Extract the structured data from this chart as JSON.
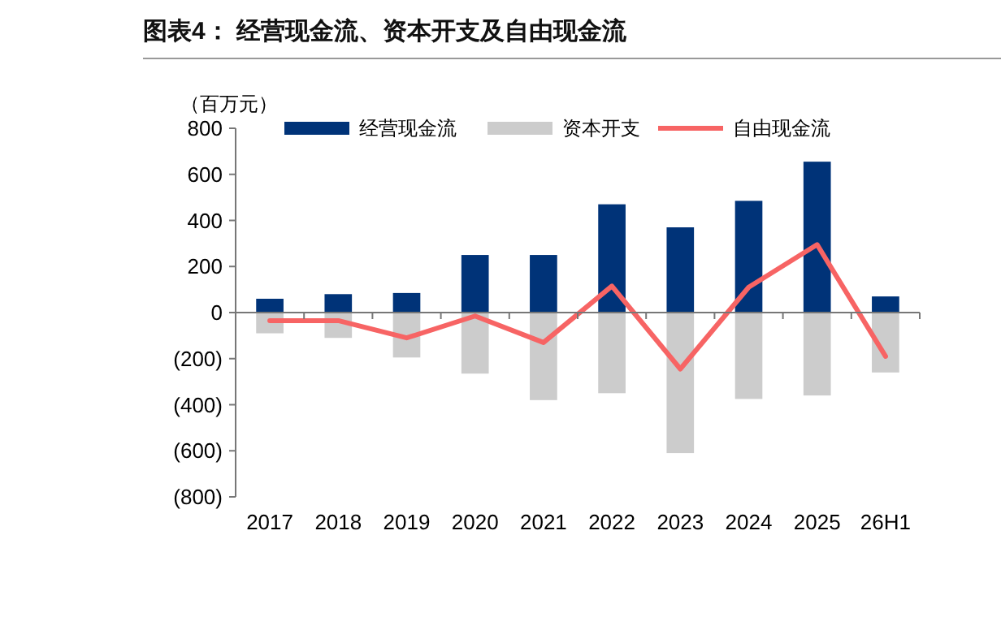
{
  "chart_data": {
    "type": "bar",
    "title": "图表4：  经营现金流、资本开支及自由现金流",
    "ylabel": "（百万元）",
    "categories": [
      "2017",
      "2018",
      "2019",
      "2020",
      "2021",
      "2022",
      "2023",
      "2024",
      "2025",
      "26H1"
    ],
    "series": [
      {
        "name": "经营现金流",
        "color": "#003378",
        "values": [
          60,
          80,
          85,
          250,
          250,
          470,
          370,
          485,
          655,
          70
        ]
      },
      {
        "name": "资本开支",
        "color": "#cccccc",
        "values": [
          -90,
          -110,
          -195,
          -265,
          -380,
          -350,
          -610,
          -375,
          -360,
          -260
        ]
      },
      {
        "name": "自由现金流",
        "type": "line",
        "color": "#f76464",
        "values": [
          -35,
          -35,
          -110,
          -15,
          -130,
          115,
          -245,
          110,
          295,
          -190
        ]
      }
    ],
    "stacked": true,
    "ylim": [
      -800,
      800
    ],
    "yticks": [
      {
        "value": -800,
        "label": "(800)"
      },
      {
        "value": -600,
        "label": "(600)"
      },
      {
        "value": -400,
        "label": "(400)"
      },
      {
        "value": -200,
        "label": "(200)"
      },
      0,
      200,
      400,
      600,
      800
    ],
    "legend": "top"
  }
}
